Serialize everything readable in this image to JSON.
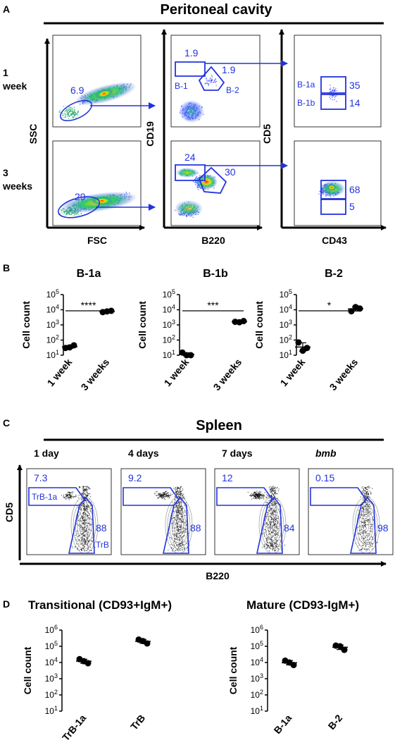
{
  "panels": {
    "A": {
      "letter": "A",
      "title": "Peritoneal cavity",
      "row_labels": [
        "1\nweek",
        "3\nweeks"
      ],
      "axis_labels": {
        "col1_x": "FSC",
        "col1_y": "SSC",
        "col2_x": "B220",
        "col2_y": "CD19",
        "col3_x": "CD43",
        "col3_y": "CD5"
      },
      "gates": {
        "r1_fsc": "6.9",
        "r1_b1": "1.9",
        "r1_b2": "1.9",
        "r1_b1_label": "B-1",
        "r1_b2_label": "B-2",
        "r1_b1a_label": "B-1a",
        "r1_b1b_label": "B-1b",
        "r1_b1a": "35",
        "r1_b1b": "14",
        "r2_fsc": "29",
        "r2_b1": "24",
        "r2_b2": "30",
        "r2_b1a": "68",
        "r2_b1b": "5"
      }
    },
    "B": {
      "letter": "B",
      "y_label": "Cell count",
      "x_categories": [
        "1 week",
        "3 weeks"
      ],
      "y_ticks": [
        {
          "base": "10",
          "exp": "1"
        },
        {
          "base": "10",
          "exp": "2"
        },
        {
          "base": "10",
          "exp": "3"
        },
        {
          "base": "10",
          "exp": "4"
        },
        {
          "base": "10",
          "exp": "5"
        }
      ]
    },
    "C": {
      "letter": "C",
      "title": "Spleen",
      "x_label": "B220",
      "y_label": "CD5",
      "plots": [
        {
          "label": "1 day",
          "italic": false,
          "trb1a": "7.3",
          "trb": "88",
          "trb1a_name": "TrB-1a",
          "trb_name": "TrB"
        },
        {
          "label": "4 days",
          "italic": false,
          "trb1a": "9.2",
          "trb": "88"
        },
        {
          "label": "7 days",
          "italic": false,
          "trb1a": "12",
          "trb": "84"
        },
        {
          "label": "bmb",
          "italic": true,
          "trb1a": "0.15",
          "trb": "98"
        }
      ]
    },
    "D": {
      "letter": "D",
      "y_label": "Cell count",
      "y_ticks": [
        {
          "base": "10",
          "exp": "1"
        },
        {
          "base": "10",
          "exp": "2"
        },
        {
          "base": "10",
          "exp": "3"
        },
        {
          "base": "10",
          "exp": "4"
        },
        {
          "base": "10",
          "exp": "5"
        },
        {
          "base": "10",
          "exp": "6"
        }
      ]
    }
  },
  "chart_data": [
    {
      "type": "scatter",
      "title": "B-1a",
      "xlabel": "",
      "ylabel": "Cell count",
      "scale": "log",
      "ylim": [
        10,
        100000
      ],
      "categories": [
        "1 week",
        "3 weeks"
      ],
      "points": [
        [
          30,
          45,
          33
        ],
        [
          7000,
          8500,
          7800
        ]
      ],
      "significance": "****"
    },
    {
      "type": "scatter",
      "title": "B-1b",
      "xlabel": "",
      "ylabel": "Cell count",
      "scale": "log",
      "ylim": [
        10,
        100000
      ],
      "categories": [
        "1 week",
        "3 weeks"
      ],
      "points": [
        [
          15,
          10,
          10
        ],
        [
          1600,
          1800,
          1500
        ]
      ],
      "significance": "***"
    },
    {
      "type": "scatter",
      "title": "B-2",
      "xlabel": "",
      "ylabel": "Cell count",
      "scale": "log",
      "ylim": [
        10,
        100000
      ],
      "categories": [
        "1 week",
        "3 weeks"
      ],
      "points": [
        [
          70,
          30,
          20
        ],
        [
          8000,
          12000,
          15000
        ]
      ],
      "significance": "*"
    },
    {
      "type": "scatter",
      "title": "Transitional (CD93+IgM+)",
      "xlabel": "",
      "ylabel": "Cell count",
      "scale": "log",
      "ylim": [
        10,
        1000000
      ],
      "categories": [
        "TrB-1a",
        "TrB"
      ],
      "points": [
        [
          16000,
          9000,
          12000
        ],
        [
          260000,
          150000,
          210000
        ]
      ]
    },
    {
      "type": "scatter",
      "title": "Mature (CD93-IgM+)",
      "xlabel": "",
      "ylabel": "Cell count",
      "scale": "log",
      "ylim": [
        10,
        1000000
      ],
      "categories": [
        "B-1a",
        "B-2"
      ],
      "points": [
        [
          13000,
          7000,
          10000
        ],
        [
          110000,
          60000,
          100000
        ]
      ]
    }
  ]
}
